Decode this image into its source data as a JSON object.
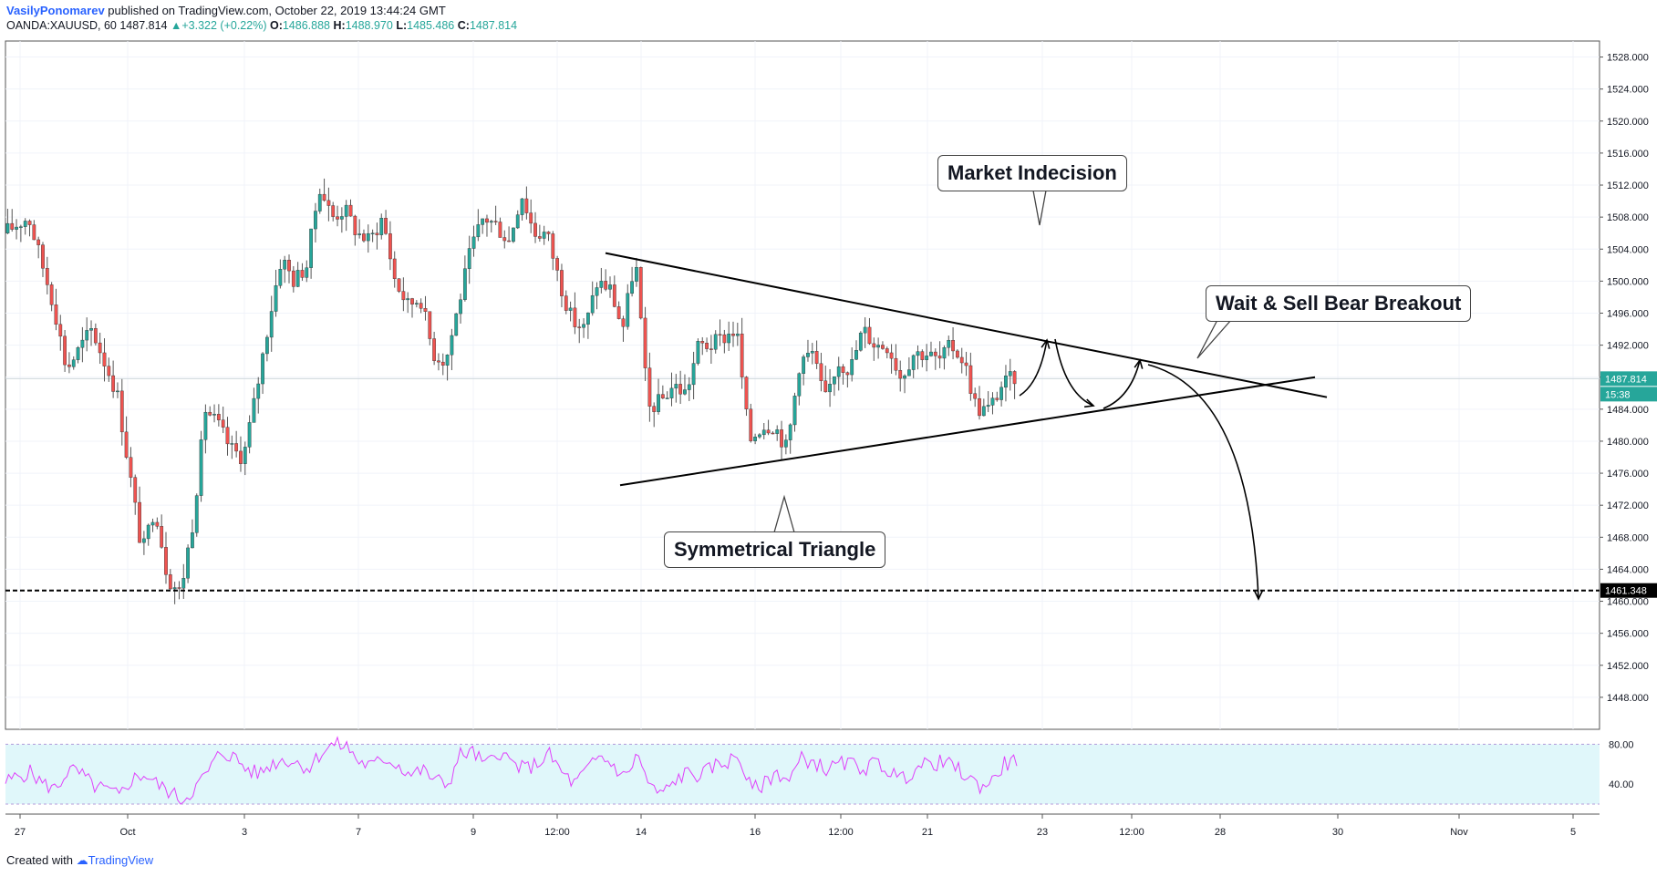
{
  "header": {
    "author": "VasilyPonomarev",
    "published": "published on TradingView.com, October 22, 2019 13:44:24 GMT",
    "symbol": "OANDA:XAUUSD, 60",
    "last": "1487.814",
    "change": "+3.322 (+0.22%)",
    "o_label": "O:",
    "o": "1486.888",
    "h_label": "H:",
    "h": "1488.970",
    "l_label": "L:",
    "l": "1485.486",
    "c_label": "C:",
    "c": "1487.814"
  },
  "footer": {
    "created": "Created with",
    "brand": "TradingView"
  },
  "annotations": {
    "market_indecision": "Market Indecision",
    "wait_sell": "Wait & Sell Bear Breakout",
    "sym_triangle": "Symmetrical Triangle"
  },
  "colors": {
    "bull": "#26a69a",
    "bear": "#ef5350",
    "rsi_line": "#e040fb",
    "rsi_band": "#e0f7fa",
    "accent": "#2962ff"
  },
  "chart_data": {
    "type": "candlestick",
    "symbol": "OANDA:XAUUSD",
    "interval": "60",
    "ylim": [
      1444,
      1530
    ],
    "yticks": [
      "1528.000",
      "1524.000",
      "1520.000",
      "1516.000",
      "1512.000",
      "1508.000",
      "1504.000",
      "1500.000",
      "1496.000",
      "1492.000",
      "1488.000",
      "1484.000",
      "1480.000",
      "1476.000",
      "1472.000",
      "1468.000",
      "1464.000",
      "1460.000",
      "1456.000",
      "1452.000",
      "1448.000"
    ],
    "xticks": [
      "27",
      "Oct",
      "3",
      "7",
      "9",
      "12:00",
      "14",
      "16",
      "12:00",
      "21",
      "23",
      "12:00",
      "28",
      "30",
      "Nov",
      "5"
    ],
    "last_price_label": "1487.814",
    "countdown_label": "15:38",
    "target_label": "1461.348",
    "target_price": 1461.348,
    "price_path": [
      [
        0,
        1506
      ],
      [
        2,
        1508
      ],
      [
        4,
        1497
      ],
      [
        5,
        1489
      ],
      [
        7,
        1494
      ],
      [
        9,
        1486
      ],
      [
        10,
        1476
      ],
      [
        11,
        1466
      ],
      [
        12,
        1472
      ],
      [
        13,
        1463
      ],
      [
        14,
        1461
      ],
      [
        15,
        1470
      ],
      [
        16,
        1484
      ],
      [
        17,
        1482
      ],
      [
        18,
        1479
      ],
      [
        19,
        1478
      ],
      [
        20,
        1486
      ],
      [
        21,
        1495
      ],
      [
        22,
        1503
      ],
      [
        23,
        1500
      ],
      [
        24,
        1502
      ],
      [
        25,
        1512
      ],
      [
        26,
        1508
      ],
      [
        27,
        1509
      ],
      [
        28,
        1506
      ],
      [
        29,
        1505
      ],
      [
        30,
        1508
      ],
      [
        31,
        1500
      ],
      [
        32,
        1497
      ],
      [
        33,
        1498
      ],
      [
        34,
        1491
      ],
      [
        35,
        1490
      ],
      [
        37,
        1504
      ],
      [
        38,
        1508
      ],
      [
        39,
        1507
      ],
      [
        40,
        1505
      ],
      [
        41,
        1511
      ],
      [
        42,
        1506
      ],
      [
        43,
        1506
      ],
      [
        44,
        1500
      ],
      [
        45,
        1495
      ],
      [
        46,
        1494
      ],
      [
        47,
        1500
      ],
      [
        48,
        1499
      ],
      [
        49,
        1494
      ],
      [
        50,
        1503
      ],
      [
        51,
        1484
      ],
      [
        52,
        1485
      ],
      [
        53,
        1487
      ],
      [
        54,
        1486
      ],
      [
        55,
        1492
      ],
      [
        56,
        1492
      ],
      [
        57,
        1493
      ],
      [
        58,
        1494
      ],
      [
        59,
        1480
      ],
      [
        60,
        1482
      ],
      [
        61,
        1482
      ],
      [
        62,
        1479
      ],
      [
        63,
        1490
      ],
      [
        64,
        1491
      ],
      [
        65,
        1485
      ],
      [
        66,
        1490
      ],
      [
        67,
        1489
      ],
      [
        68,
        1494
      ],
      [
        69,
        1492
      ],
      [
        70,
        1492
      ],
      [
        71,
        1488
      ],
      [
        72,
        1491
      ],
      [
        73,
        1491
      ],
      [
        74,
        1490
      ],
      [
        75,
        1492
      ],
      [
        76,
        1490
      ],
      [
        77,
        1484
      ],
      [
        78,
        1484
      ],
      [
        79,
        1487
      ],
      [
        80,
        1488
      ]
    ],
    "rsi": {
      "levels": [
        "80.00",
        "40.00"
      ],
      "ylim": [
        10,
        95
      ],
      "band": [
        30,
        70
      ],
      "values": [
        42,
        48,
        52,
        40,
        35,
        55,
        50,
        38,
        34,
        28,
        45,
        50,
        40,
        32,
        24,
        36,
        52,
        72,
        68,
        56,
        50,
        60,
        65,
        62,
        56,
        72,
        80,
        78,
        62,
        58,
        66,
        60,
        50,
        54,
        44,
        40,
        70,
        72,
        58,
        74,
        62,
        55,
        60,
        70,
        52,
        40,
        54,
        68,
        60,
        46,
        70,
        36,
        30,
        44,
        52,
        48,
        58,
        62,
        68,
        34,
        40,
        52,
        44,
        66,
        62,
        54,
        60,
        60,
        56,
        62,
        52,
        45,
        56,
        60,
        62,
        58,
        48,
        38,
        42,
        60,
        64
      ]
    },
    "drawings": {
      "triangle_upper": [
        [
          0.0,
          1503.5
        ],
        [
          1.0,
          1485.5
        ]
      ],
      "triangle_lower": [
        [
          0.0,
          1474.5
        ],
        [
          1.0,
          1488.0
        ]
      ]
    }
  }
}
